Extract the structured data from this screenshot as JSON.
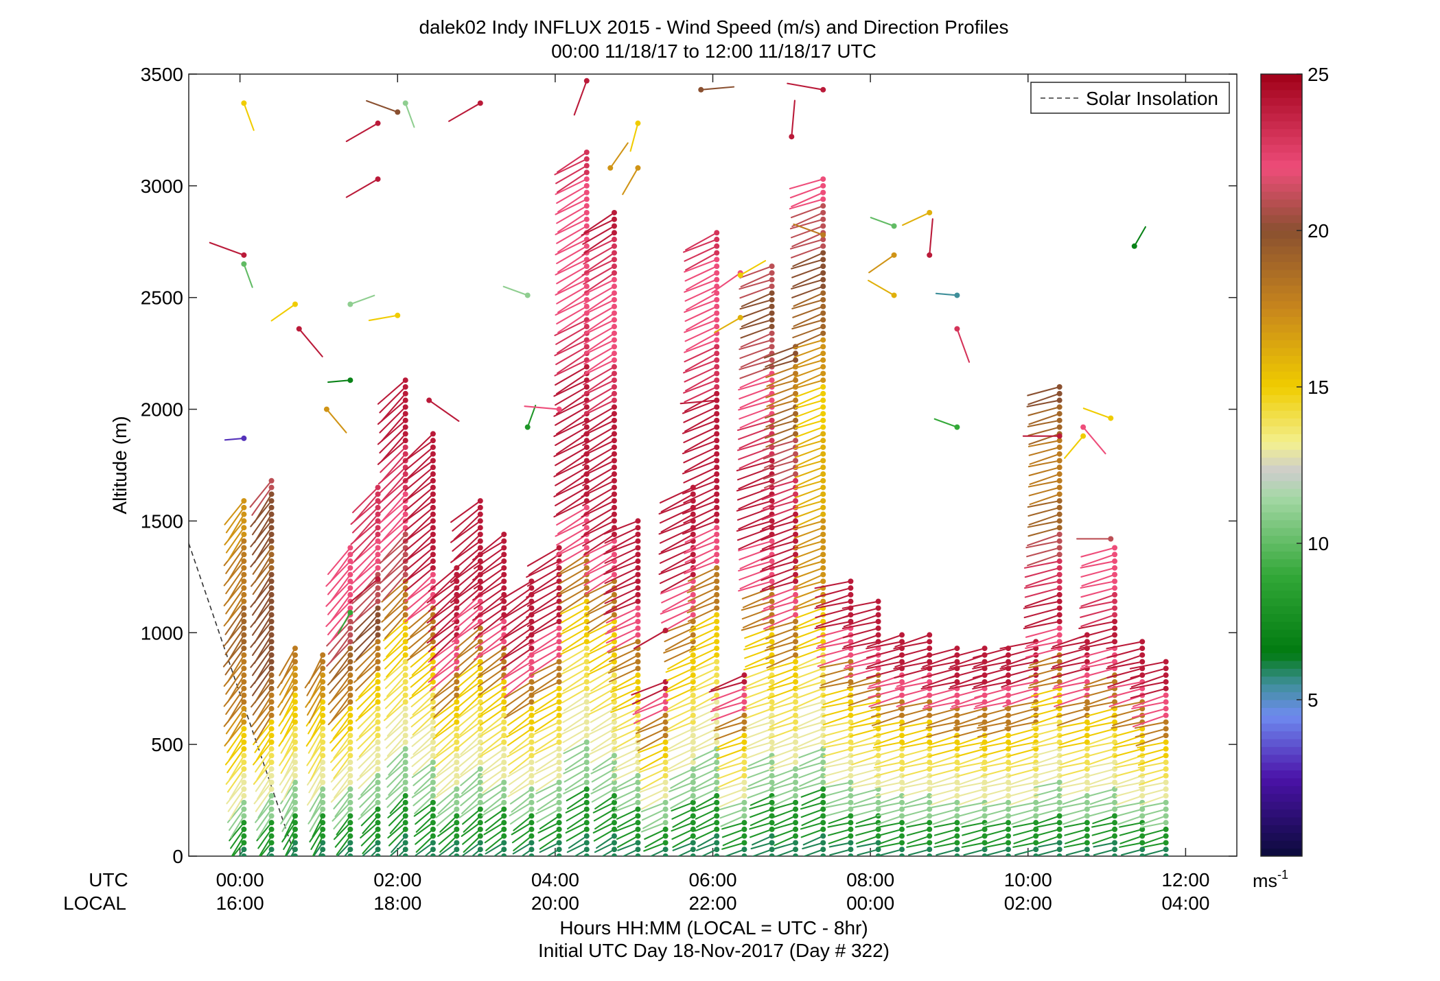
{
  "chart_data": {
    "type": "scatter",
    "subtype": "wind-barb-profiles",
    "title": "dalek02 Indy INFLUX 2015 - Wind Speed (m/s) and Direction Profiles",
    "subtitle": "00:00 11/18/17 to 12:00 11/18/17  UTC",
    "xlabel": "Hours HH:MM  (LOCAL = UTC - 8hr)",
    "xlabel2": "Initial UTC Day 18-Nov-2017 (Day # 322)",
    "ylabel": "Altitude (m)",
    "xlim": [
      -0.65,
      12.65
    ],
    "ylim": [
      0,
      3500
    ],
    "utc_row_label": "UTC",
    "local_row_label": "LOCAL",
    "x_ticks": [
      0,
      2,
      4,
      6,
      8,
      10,
      12
    ],
    "x_tick_labels_utc": [
      "00:00",
      "02:00",
      "04:00",
      "06:00",
      "08:00",
      "10:00",
      "12:00"
    ],
    "x_tick_labels_local": [
      "16:00",
      "18:00",
      "20:00",
      "22:00",
      "00:00",
      "02:00",
      "04:00"
    ],
    "y_ticks": [
      0,
      500,
      1000,
      1500,
      2000,
      2500,
      3000,
      3500
    ],
    "y_tick_labels": [
      "0",
      "500",
      "1000",
      "1500",
      "2000",
      "2500",
      "3000",
      "3500"
    ],
    "legend": {
      "label": "Solar Insolation",
      "position": "top-right"
    },
    "colorbar": {
      "range": [
        0,
        25
      ],
      "ticks": [
        5,
        10,
        15,
        20,
        25
      ],
      "tick_labels": [
        "5",
        "10",
        "15",
        "20",
        "25"
      ],
      "unit_base": "ms",
      "unit_exp": "-1",
      "stops": [
        {
          "v": 0,
          "c": "#0b0b3b"
        },
        {
          "v": 2.5,
          "c": "#4b12a8"
        },
        {
          "v": 4.5,
          "c": "#6f8cf0"
        },
        {
          "v": 5.5,
          "c": "#3f8f9a"
        },
        {
          "v": 6.5,
          "c": "#007a10"
        },
        {
          "v": 9,
          "c": "#33a838"
        },
        {
          "v": 11.5,
          "c": "#a6d8a6"
        },
        {
          "v": 12.3,
          "c": "#cccccc"
        },
        {
          "v": 13.2,
          "c": "#f3f090"
        },
        {
          "v": 15,
          "c": "#f0cc00"
        },
        {
          "v": 17.5,
          "c": "#c8861c"
        },
        {
          "v": 20,
          "c": "#8a5030"
        },
        {
          "v": 22,
          "c": "#ee4d7a"
        },
        {
          "v": 25,
          "c": "#a00018"
        }
      ]
    },
    "solar_insolation": {
      "x": [
        -0.65,
        0.7
      ],
      "y": [
        1400,
        0
      ]
    },
    "profiles": [
      {
        "t": 0.05,
        "ceil": 1600,
        "spd": [
          6,
          8,
          11,
          13,
          14,
          15,
          17,
          18,
          18,
          19,
          19,
          18,
          18,
          18,
          17,
          17
        ],
        "dir": 215
      },
      {
        "t": 0.4,
        "ceil": 1700,
        "spd": [
          6,
          8,
          11,
          13,
          14,
          15,
          18,
          19,
          20,
          20,
          20,
          20,
          19,
          20,
          20,
          21
        ],
        "dir": 215
      },
      {
        "t": 0.7,
        "ceil": 950,
        "spd": [
          6,
          8,
          11,
          13,
          14,
          15,
          17,
          18
        ],
        "dir": 210
      },
      {
        "t": 1.05,
        "ceil": 900,
        "spd": [
          6,
          8,
          11,
          13,
          14,
          15,
          17,
          18
        ],
        "dir": 210
      },
      {
        "t": 1.4,
        "ceil": 1400,
        "spd": [
          6,
          8,
          11,
          13,
          14,
          15,
          18,
          19,
          21,
          22,
          22,
          22
        ],
        "dir": 220
      },
      {
        "t": 1.75,
        "ceil": 1650,
        "spd": [
          6,
          8,
          11,
          13,
          14,
          15,
          18,
          20,
          21,
          22,
          23,
          23
        ],
        "dir": 225
      },
      {
        "t": 2.1,
        "ceil": 2150,
        "spd": [
          6,
          8,
          11,
          13,
          14,
          15,
          18,
          21,
          22,
          23,
          24,
          24
        ],
        "dir": 225
      },
      {
        "t": 2.45,
        "ceil": 1900,
        "spd": [
          6,
          8,
          11,
          13,
          14,
          15,
          18,
          22,
          24,
          24,
          24,
          24
        ],
        "dir": 230
      },
      {
        "t": 2.75,
        "ceil": 1300,
        "spd": [
          6,
          8,
          11,
          13,
          14,
          15,
          18,
          22,
          24,
          24,
          24
        ],
        "dir": 230
      },
      {
        "t": 3.05,
        "ceil": 1600,
        "spd": [
          6,
          8,
          11,
          13,
          14,
          15,
          18,
          22,
          24,
          24,
          24
        ],
        "dir": 230
      },
      {
        "t": 3.35,
        "ceil": 1450,
        "spd": [
          6,
          8,
          11,
          13,
          14,
          15,
          18,
          22,
          24,
          24,
          24
        ],
        "dir": 235
      },
      {
        "t": 3.7,
        "ceil": 1250,
        "spd": [
          6,
          8,
          11,
          13,
          14,
          15,
          18,
          22,
          24,
          24,
          24
        ],
        "dir": 235
      },
      {
        "t": 4.05,
        "ceil": 1400,
        "spd": [
          6,
          8,
          11,
          13,
          14,
          15,
          18,
          22,
          24,
          24,
          24
        ],
        "dir": 240
      },
      {
        "t": 4.4,
        "ceil": 3150,
        "spd": [
          6,
          8,
          11,
          13,
          14,
          15,
          18,
          22,
          24,
          24,
          24,
          23,
          22,
          22,
          22,
          23
        ],
        "dir": 240
      },
      {
        "t": 4.75,
        "ceil": 2900,
        "spd": [
          6,
          8,
          11,
          13,
          14,
          15,
          18,
          22,
          24,
          24,
          24,
          23,
          22,
          22,
          23,
          24
        ],
        "dir": 240
      },
      {
        "t": 5.05,
        "ceil": 1500,
        "spd": [
          6,
          8,
          11,
          13,
          14,
          15,
          18,
          22,
          24,
          24,
          24
        ],
        "dir": 245
      },
      {
        "t": 5.4,
        "ceil": 780,
        "spd": [
          6,
          8,
          11,
          13,
          14,
          15,
          18,
          22,
          24
        ],
        "dir": 245
      },
      {
        "t": 5.75,
        "ceil": 1650,
        "spd": [
          6,
          8,
          11,
          13,
          14,
          15,
          18,
          22,
          24,
          24,
          24
        ],
        "dir": 245
      },
      {
        "t": 6.05,
        "ceil": 2800,
        "spd": [
          6,
          8,
          11,
          13,
          14,
          15,
          18,
          22,
          24,
          24,
          24,
          23,
          22,
          22,
          23
        ],
        "dir": 245
      },
      {
        "t": 6.4,
        "ceil": 820,
        "spd": [
          6,
          8,
          11,
          13,
          14,
          15,
          18,
          22,
          24
        ],
        "dir": 250
      },
      {
        "t": 6.75,
        "ceil": 2650,
        "spd": [
          6,
          8,
          11,
          13,
          14,
          15,
          18,
          22,
          24,
          24,
          23,
          22,
          21,
          20,
          21
        ],
        "dir": 250
      },
      {
        "t": 7.05,
        "ceil": 2300,
        "spd": [
          6,
          8,
          11,
          13,
          14,
          15,
          18,
          22,
          24,
          24,
          23,
          21,
          19,
          18,
          20
        ],
        "dir": 250
      },
      {
        "t": 7.4,
        "ceil": 3050,
        "spd": [
          6,
          8,
          11,
          13,
          14,
          15,
          17,
          17,
          16,
          16,
          15,
          17,
          19,
          20,
          21,
          22
        ],
        "dir": 250
      },
      {
        "t": 7.75,
        "ceil": 1250,
        "spd": [
          6,
          8,
          11,
          13,
          14,
          15,
          18,
          22,
          24,
          24
        ],
        "dir": 255
      },
      {
        "t": 8.1,
        "ceil": 1150,
        "spd": [
          6,
          8,
          11,
          13,
          14,
          15,
          18,
          22,
          24,
          24
        ],
        "dir": 255
      },
      {
        "t": 8.4,
        "ceil": 1000,
        "spd": [
          6,
          8,
          11,
          13,
          14,
          15,
          18,
          22,
          24,
          24
        ],
        "dir": 255
      },
      {
        "t": 8.75,
        "ceil": 1000,
        "spd": [
          6,
          8,
          11,
          13,
          14,
          15,
          18,
          22,
          24,
          24
        ],
        "dir": 255
      },
      {
        "t": 9.1,
        "ceil": 950,
        "spd": [
          6,
          8,
          11,
          13,
          14,
          15,
          18,
          22,
          24,
          24
        ],
        "dir": 255
      },
      {
        "t": 9.45,
        "ceil": 950,
        "spd": [
          6,
          8,
          11,
          13,
          14,
          15,
          18,
          22,
          24,
          24
        ],
        "dir": 255
      },
      {
        "t": 9.75,
        "ceil": 950,
        "spd": [
          6,
          8,
          11,
          13,
          14,
          15,
          18,
          22,
          24,
          24
        ],
        "dir": 255
      },
      {
        "t": 10.1,
        "ceil": 980,
        "spd": [
          6,
          8,
          11,
          13,
          14,
          15,
          18,
          22,
          24,
          24
        ],
        "dir": 255
      },
      {
        "t": 10.4,
        "ceil": 2100,
        "spd": [
          6,
          8,
          11,
          13,
          14,
          15,
          18,
          22,
          24,
          23,
          21,
          19,
          18,
          18,
          19,
          20
        ],
        "dir": 255
      },
      {
        "t": 10.75,
        "ceil": 1000,
        "spd": [
          6,
          8,
          11,
          13,
          14,
          15,
          18,
          22,
          24,
          24
        ],
        "dir": 255
      },
      {
        "t": 11.1,
        "ceil": 1400,
        "spd": [
          6,
          8,
          11,
          13,
          14,
          15,
          18,
          22,
          24,
          23,
          22,
          22
        ],
        "dir": 255
      },
      {
        "t": 11.45,
        "ceil": 980,
        "spd": [
          6,
          8,
          11,
          13,
          14,
          15,
          18,
          22,
          24,
          24
        ],
        "dir": 255
      },
      {
        "t": 11.75,
        "ceil": 870,
        "spd": [
          6,
          8,
          11,
          13,
          14,
          15,
          18,
          22,
          24,
          24
        ],
        "dir": 255
      }
    ],
    "scattered": [
      {
        "t": 0.05,
        "z": 3370,
        "spd": 15,
        "dir": 160
      },
      {
        "t": 0.05,
        "z": 2690,
        "spd": 24,
        "dir": 290
      },
      {
        "t": 0.05,
        "z": 2650,
        "spd": 10,
        "dir": 160
      },
      {
        "t": 0.05,
        "z": 1870,
        "spd": 3,
        "dir": 265
      },
      {
        "t": 0.7,
        "z": 2470,
        "spd": 15,
        "dir": 235
      },
      {
        "t": 0.75,
        "z": 2360,
        "spd": 24,
        "dir": 140
      },
      {
        "t": 1.1,
        "z": 2000,
        "spd": 17,
        "dir": 140
      },
      {
        "t": 1.4,
        "z": 2130,
        "spd": 7,
        "dir": 265
      },
      {
        "t": 1.4,
        "z": 2470,
        "spd": 11,
        "dir": 70
      },
      {
        "t": 1.4,
        "z": 1090,
        "spd": 9,
        "dir": 210
      },
      {
        "t": 1.75,
        "z": 3280,
        "spd": 24,
        "dir": 240
      },
      {
        "t": 1.75,
        "z": 3030,
        "spd": 24,
        "dir": 240
      },
      {
        "t": 1.75,
        "z": 1240,
        "spd": 24,
        "dir": 230
      },
      {
        "t": 2.0,
        "z": 2420,
        "spd": 15,
        "dir": 260
      },
      {
        "t": 2.0,
        "z": 3330,
        "spd": 20,
        "dir": 290
      },
      {
        "t": 2.1,
        "z": 3370,
        "spd": 11,
        "dir": 160
      },
      {
        "t": 2.4,
        "z": 2040,
        "spd": 24,
        "dir": 125
      },
      {
        "t": 3.05,
        "z": 3370,
        "spd": 24,
        "dir": 240
      },
      {
        "t": 3.65,
        "z": 2510,
        "spd": 11,
        "dir": 290
      },
      {
        "t": 3.65,
        "z": 1920,
        "spd": 8,
        "dir": 20
      },
      {
        "t": 4.05,
        "z": 2000,
        "spd": 22,
        "dir": 275
      },
      {
        "t": 4.4,
        "z": 3470,
        "spd": 24,
        "dir": 200
      },
      {
        "t": 4.7,
        "z": 3080,
        "spd": 17,
        "dir": 35
      },
      {
        "t": 5.05,
        "z": 3280,
        "spd": 15,
        "dir": 195
      },
      {
        "t": 5.05,
        "z": 3080,
        "spd": 17,
        "dir": 210
      },
      {
        "t": 5.4,
        "z": 1010,
        "spd": 24,
        "dir": 240
      },
      {
        "t": 5.85,
        "z": 3430,
        "spd": 20,
        "dir": 85
      },
      {
        "t": 6.05,
        "z": 2040,
        "spd": 24,
        "dir": 265
      },
      {
        "t": 6.35,
        "z": 2610,
        "spd": 22,
        "dir": 235
      },
      {
        "t": 6.35,
        "z": 2410,
        "spd": 16,
        "dir": 240
      },
      {
        "t": 6.35,
        "z": 2600,
        "spd": 15,
        "dir": 60
      },
      {
        "t": 7.0,
        "z": 3220,
        "spd": 24,
        "dir": 5
      },
      {
        "t": 7.4,
        "z": 3430,
        "spd": 24,
        "dir": 280
      },
      {
        "t": 7.4,
        "z": 2780,
        "spd": 18,
        "dir": 290
      },
      {
        "t": 8.3,
        "z": 2820,
        "spd": 10,
        "dir": 290
      },
      {
        "t": 8.3,
        "z": 2690,
        "spd": 17,
        "dir": 235
      },
      {
        "t": 8.3,
        "z": 2510,
        "spd": 16,
        "dir": 300
      },
      {
        "t": 8.75,
        "z": 2880,
        "spd": 16,
        "dir": 245
      },
      {
        "t": 8.75,
        "z": 2690,
        "spd": 24,
        "dir": 5
      },
      {
        "t": 9.1,
        "z": 2510,
        "spd": 5.5,
        "dir": 275
      },
      {
        "t": 9.1,
        "z": 2360,
        "spd": 23,
        "dir": 160
      },
      {
        "t": 9.1,
        "z": 1920,
        "spd": 9,
        "dir": 290
      },
      {
        "t": 10.4,
        "z": 1880,
        "spd": 24,
        "dir": 270
      },
      {
        "t": 10.7,
        "z": 1920,
        "spd": 22,
        "dir": 140
      },
      {
        "t": 10.7,
        "z": 1880,
        "spd": 15,
        "dir": 220
      },
      {
        "t": 11.05,
        "z": 1960,
        "spd": 15,
        "dir": 290
      },
      {
        "t": 11.05,
        "z": 1420,
        "spd": 21,
        "dir": 270
      },
      {
        "t": 11.35,
        "z": 2730,
        "spd": 7,
        "dir": 30
      }
    ]
  }
}
